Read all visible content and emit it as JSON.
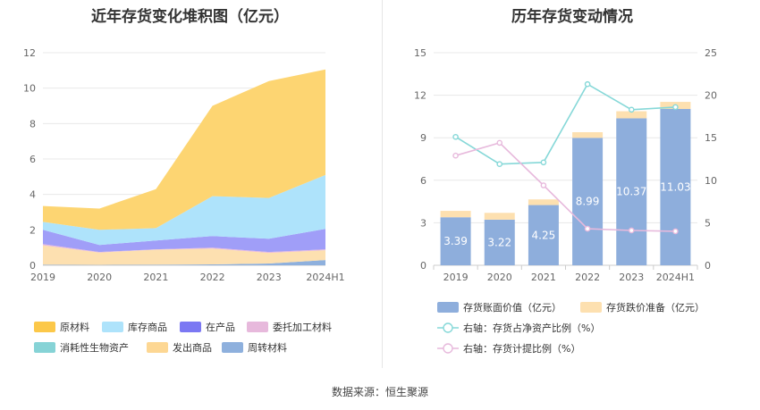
{
  "source_text": "数据来源：恒生聚源",
  "chart_data": [
    {
      "type": "area",
      "stacked": true,
      "title": "近年存货变化堆积图（亿元）",
      "categories": [
        "2019",
        "2020",
        "2021",
        "2022",
        "2023",
        "2024H1"
      ],
      "ylim": [
        0,
        12
      ],
      "yticks": [
        0,
        2,
        4,
        6,
        8,
        10,
        12
      ],
      "grid": true,
      "legend_position": "bottom",
      "series": [
        {
          "name": "周转材料",
          "color": "#8eb0dd",
          "values": [
            0.03,
            0.02,
            0.03,
            0.05,
            0.1,
            0.3
          ]
        },
        {
          "name": "发出商品",
          "color": "#fde0b0",
          "values": [
            1.1,
            0.7,
            0.85,
            0.9,
            0.6,
            0.55
          ]
        },
        {
          "name": "消耗性生物资产",
          "color": "#86d3d6",
          "values": [
            0.0,
            0.0,
            0.0,
            0.0,
            0.0,
            0.0
          ]
        },
        {
          "name": "委托加工材料",
          "color": "#e7b9dc",
          "values": [
            0.07,
            0.03,
            0.02,
            0.05,
            0.05,
            0.05
          ]
        },
        {
          "name": "在产品",
          "color": "#a09ef8",
          "values": [
            0.8,
            0.4,
            0.5,
            0.65,
            0.75,
            1.15
          ]
        },
        {
          "name": "库存商品",
          "color": "#aee3fb",
          "values": [
            0.45,
            0.85,
            0.7,
            2.25,
            2.3,
            3.05
          ]
        },
        {
          "name": "原材料",
          "color": "#fdd572",
          "values": [
            0.9,
            1.2,
            2.2,
            5.1,
            6.6,
            5.95
          ]
        }
      ],
      "legend_order": [
        "原材料",
        "库存商品",
        "在产品",
        "委托加工材料",
        "消耗性生物资产",
        "发出商品",
        "周转材料"
      ],
      "legend_colors": [
        "#fcc849",
        "#aee3fb",
        "#7b78f3",
        "#e7b9dc",
        "#86d3d6",
        "#fdd793",
        "#8eb0dd"
      ]
    },
    {
      "type": "bar",
      "stacked": true,
      "title": "历年存货变动情况",
      "categories": [
        "2019",
        "2020",
        "2021",
        "2022",
        "2023",
        "2024H1"
      ],
      "ylim": [
        0,
        15
      ],
      "yticks": [
        0,
        3,
        6,
        9,
        12,
        15
      ],
      "y2lim": [
        0,
        25
      ],
      "y2ticks": [
        0,
        5,
        10,
        15,
        20,
        25
      ],
      "grid": true,
      "legend_position": "bottom",
      "series": [
        {
          "name": "存货账面价值（亿元）",
          "axis": "left",
          "kind": "bar",
          "color": "#8eaedc",
          "values": [
            3.39,
            3.22,
            4.25,
            8.99,
            10.37,
            11.03
          ],
          "data_labels": [
            "3.39",
            "3.22",
            "4.25",
            "8.99",
            "10.37",
            "11.03"
          ]
        },
        {
          "name": "存货跌价准备（亿元）",
          "axis": "left",
          "kind": "bar",
          "color": "#fde0b0",
          "values": [
            0.45,
            0.48,
            0.4,
            0.4,
            0.5,
            0.5
          ]
        },
        {
          "name": "右轴：存货占净资产比例（%）",
          "axis": "right",
          "kind": "line",
          "color": "#86d8d8",
          "values": [
            15.1,
            11.9,
            12.1,
            21.3,
            18.3,
            18.6
          ]
        },
        {
          "name": "右轴：存货计提比例（%）",
          "axis": "right",
          "kind": "line",
          "color": "#e7b9dc",
          "values": [
            12.9,
            14.4,
            9.4,
            4.3,
            4.1,
            4.0
          ]
        }
      ]
    }
  ]
}
